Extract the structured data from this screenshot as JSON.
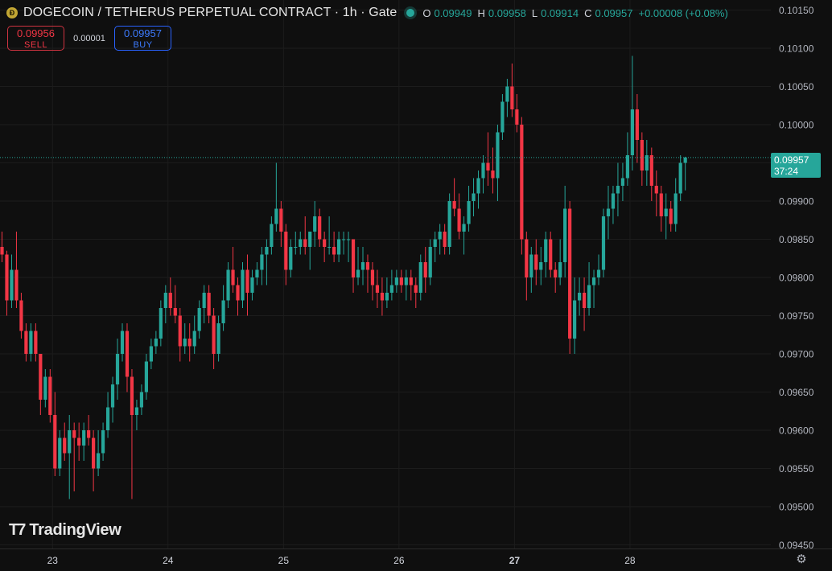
{
  "header": {
    "coin_icon": "dogecoin-coin-icon",
    "title": "DOGECOIN / TETHERUS PERPETUAL CONTRACT · 1h · Gate",
    "ohlc": {
      "o_label": "O",
      "o_value": "0.09949",
      "h_label": "H",
      "h_value": "0.09958",
      "l_label": "L",
      "l_value": "0.09914",
      "c_label": "C",
      "c_value": "0.09957",
      "change": "+0.00008 (+0.08%)"
    }
  },
  "trade": {
    "sell_price": "0.09956",
    "sell_label": "SELL",
    "spread": "0.00001",
    "buy_price": "0.09957",
    "buy_label": "BUY"
  },
  "last_price": {
    "price": "0.09957",
    "countdown": "37:24"
  },
  "branding": {
    "logo_text": "TradingView"
  },
  "colors": {
    "up": "#26a69a",
    "down": "#f23645",
    "background": "#0f0f0f",
    "grid": "#1c1c1c"
  },
  "chart_data": {
    "type": "candlestick",
    "title": "DOGECOIN / TETHERUS PERPETUAL CONTRACT · 1h · Gate",
    "ylim": [
      0.0945,
      0.1015
    ],
    "y_ticks": [
      "0.10150",
      "0.10100",
      "0.10050",
      "0.10000",
      "0.09950",
      "0.09900",
      "0.09850",
      "0.09800",
      "0.09750",
      "0.09700",
      "0.09650",
      "0.09600",
      "0.09550",
      "0.09500",
      "0.09450"
    ],
    "x_ticks": [
      {
        "label": "23",
        "index": 10.5,
        "bold": false
      },
      {
        "label": "24",
        "index": 34.5,
        "bold": false
      },
      {
        "label": "25",
        "index": 58.5,
        "bold": false
      },
      {
        "label": "26",
        "index": 82.5,
        "bold": false
      },
      {
        "label": "27",
        "index": 106.5,
        "bold": true
      },
      {
        "label": "28",
        "index": 130.5,
        "bold": false
      }
    ],
    "last_price": 0.09957,
    "candles": [
      [
        0.0984,
        0.0986,
        0.0982,
        0.0983
      ],
      [
        0.0983,
        0.09835,
        0.0975,
        0.0977
      ],
      [
        0.0977,
        0.0983,
        0.0976,
        0.0981
      ],
      [
        0.0981,
        0.0986,
        0.0976,
        0.0977
      ],
      [
        0.0977,
        0.0978,
        0.0972,
        0.0973
      ],
      [
        0.0973,
        0.0974,
        0.0969,
        0.097
      ],
      [
        0.097,
        0.0974,
        0.0969,
        0.0973
      ],
      [
        0.0973,
        0.0974,
        0.0969,
        0.097
      ],
      [
        0.097,
        0.097,
        0.0962,
        0.0964
      ],
      [
        0.0964,
        0.0968,
        0.0963,
        0.0967
      ],
      [
        0.0967,
        0.0968,
        0.0961,
        0.0962
      ],
      [
        0.0962,
        0.0965,
        0.0954,
        0.0955
      ],
      [
        0.0955,
        0.096,
        0.0954,
        0.0959
      ],
      [
        0.0959,
        0.0961,
        0.0956,
        0.0957
      ],
      [
        0.0957,
        0.0962,
        0.0951,
        0.096
      ],
      [
        0.096,
        0.0961,
        0.0952,
        0.0959
      ],
      [
        0.0959,
        0.0961,
        0.0956,
        0.0958
      ],
      [
        0.0958,
        0.0961,
        0.0956,
        0.096
      ],
      [
        0.096,
        0.0962,
        0.0958,
        0.0959
      ],
      [
        0.0959,
        0.096,
        0.0952,
        0.0955
      ],
      [
        0.0955,
        0.096,
        0.0954,
        0.0957
      ],
      [
        0.0957,
        0.0961,
        0.0956,
        0.096
      ],
      [
        0.096,
        0.0965,
        0.0959,
        0.0963
      ],
      [
        0.0963,
        0.0967,
        0.0961,
        0.0966
      ],
      [
        0.0966,
        0.0972,
        0.0964,
        0.097
      ],
      [
        0.097,
        0.0974,
        0.0969,
        0.0973
      ],
      [
        0.0973,
        0.0974,
        0.0965,
        0.0967
      ],
      [
        0.0967,
        0.0968,
        0.0951,
        0.0962
      ],
      [
        0.0962,
        0.0964,
        0.096,
        0.0963
      ],
      [
        0.0963,
        0.0966,
        0.0962,
        0.0965
      ],
      [
        0.0965,
        0.097,
        0.0964,
        0.0969
      ],
      [
        0.0969,
        0.0972,
        0.0968,
        0.0971
      ],
      [
        0.0971,
        0.0973,
        0.097,
        0.0972
      ],
      [
        0.0972,
        0.0977,
        0.0971,
        0.0976
      ],
      [
        0.0976,
        0.0979,
        0.0974,
        0.0978
      ],
      [
        0.0978,
        0.098,
        0.0975,
        0.0976
      ],
      [
        0.0976,
        0.0979,
        0.0974,
        0.0975
      ],
      [
        0.0975,
        0.0976,
        0.0969,
        0.0971
      ],
      [
        0.0971,
        0.0974,
        0.097,
        0.0972
      ],
      [
        0.0972,
        0.0974,
        0.0969,
        0.0971
      ],
      [
        0.0971,
        0.0975,
        0.097,
        0.0973
      ],
      [
        0.0973,
        0.0977,
        0.0972,
        0.0976
      ],
      [
        0.0976,
        0.0979,
        0.0974,
        0.0978
      ],
      [
        0.0978,
        0.0979,
        0.0974,
        0.0975
      ],
      [
        0.0975,
        0.0976,
        0.0968,
        0.097
      ],
      [
        0.097,
        0.0975,
        0.0969,
        0.0974
      ],
      [
        0.0974,
        0.0979,
        0.0973,
        0.0977
      ],
      [
        0.0977,
        0.0982,
        0.0976,
        0.0981
      ],
      [
        0.0981,
        0.0984,
        0.0978,
        0.0979
      ],
      [
        0.0979,
        0.098,
        0.0975,
        0.0977
      ],
      [
        0.0977,
        0.0982,
        0.0976,
        0.0981
      ],
      [
        0.0981,
        0.0983,
        0.0975,
        0.0978
      ],
      [
        0.0978,
        0.0981,
        0.0977,
        0.098
      ],
      [
        0.098,
        0.0982,
        0.0979,
        0.0981
      ],
      [
        0.0981,
        0.0984,
        0.0979,
        0.0983
      ],
      [
        0.0983,
        0.0985,
        0.0979,
        0.0984
      ],
      [
        0.0984,
        0.0988,
        0.0983,
        0.0987
      ],
      [
        0.0987,
        0.0995,
        0.0986,
        0.0989
      ],
      [
        0.0989,
        0.099,
        0.0984,
        0.0986
      ],
      [
        0.0986,
        0.0987,
        0.0979,
        0.0981
      ],
      [
        0.0981,
        0.0985,
        0.098,
        0.0984
      ],
      [
        0.0984,
        0.0986,
        0.0983,
        0.0984
      ],
      [
        0.0984,
        0.0986,
        0.0983,
        0.0985
      ],
      [
        0.0985,
        0.0988,
        0.0983,
        0.0984
      ],
      [
        0.0984,
        0.0986,
        0.0981,
        0.0986
      ],
      [
        0.0986,
        0.099,
        0.0984,
        0.0988
      ],
      [
        0.0988,
        0.0989,
        0.0984,
        0.0985
      ],
      [
        0.0985,
        0.0986,
        0.0982,
        0.0984
      ],
      [
        0.0984,
        0.0988,
        0.0983,
        0.0984
      ],
      [
        0.0984,
        0.0986,
        0.0982,
        0.0983
      ],
      [
        0.0983,
        0.0986,
        0.0982,
        0.0985
      ],
      [
        0.0985,
        0.0986,
        0.0983,
        0.0985
      ],
      [
        0.0985,
        0.0986,
        0.0982,
        0.0985
      ],
      [
        0.0985,
        0.0985,
        0.0978,
        0.098
      ],
      [
        0.098,
        0.0984,
        0.0979,
        0.0981
      ],
      [
        0.0981,
        0.0984,
        0.0979,
        0.0982
      ],
      [
        0.0982,
        0.0983,
        0.0978,
        0.0981
      ],
      [
        0.0981,
        0.0982,
        0.0977,
        0.0979
      ],
      [
        0.0979,
        0.0981,
        0.0976,
        0.0978
      ],
      [
        0.0978,
        0.098,
        0.0975,
        0.0977
      ],
      [
        0.0977,
        0.098,
        0.0976,
        0.0978
      ],
      [
        0.0978,
        0.0981,
        0.0977,
        0.0979
      ],
      [
        0.0979,
        0.0981,
        0.0978,
        0.098
      ],
      [
        0.098,
        0.0981,
        0.0978,
        0.0979
      ],
      [
        0.0979,
        0.0981,
        0.0977,
        0.098
      ],
      [
        0.098,
        0.0981,
        0.0977,
        0.0979
      ],
      [
        0.0979,
        0.098,
        0.0976,
        0.0978
      ],
      [
        0.0978,
        0.0983,
        0.0977,
        0.0982
      ],
      [
        0.0982,
        0.0984,
        0.0978,
        0.098
      ],
      [
        0.098,
        0.0985,
        0.0979,
        0.0984
      ],
      [
        0.0984,
        0.0986,
        0.0982,
        0.0985
      ],
      [
        0.0985,
        0.0987,
        0.0983,
        0.0986
      ],
      [
        0.0986,
        0.0987,
        0.0983,
        0.0984
      ],
      [
        0.0984,
        0.0991,
        0.0983,
        0.099
      ],
      [
        0.099,
        0.0993,
        0.0988,
        0.0989
      ],
      [
        0.0989,
        0.0991,
        0.0985,
        0.0986
      ],
      [
        0.0986,
        0.0988,
        0.0983,
        0.0987
      ],
      [
        0.0987,
        0.0992,
        0.0986,
        0.099
      ],
      [
        0.099,
        0.0993,
        0.0988,
        0.0991
      ],
      [
        0.0991,
        0.0994,
        0.0989,
        0.0993
      ],
      [
        0.0993,
        0.0996,
        0.0991,
        0.0995
      ],
      [
        0.0995,
        0.0999,
        0.0992,
        0.0994
      ],
      [
        0.0994,
        0.0997,
        0.0991,
        0.0993
      ],
      [
        0.0993,
        0.1,
        0.099,
        0.0999
      ],
      [
        0.0999,
        0.1004,
        0.0998,
        0.1003
      ],
      [
        0.1003,
        0.1006,
        0.1001,
        0.1005
      ],
      [
        0.1005,
        0.1008,
        0.1001,
        0.1002
      ],
      [
        0.1002,
        0.1004,
        0.0999,
        0.1
      ],
      [
        0.1,
        0.1001,
        0.0983,
        0.0985
      ],
      [
        0.0985,
        0.0986,
        0.0977,
        0.098
      ],
      [
        0.098,
        0.0984,
        0.0978,
        0.0983
      ],
      [
        0.0983,
        0.0985,
        0.0979,
        0.0981
      ],
      [
        0.0981,
        0.0984,
        0.0979,
        0.0982
      ],
      [
        0.0982,
        0.0986,
        0.098,
        0.0985
      ],
      [
        0.0985,
        0.0986,
        0.098,
        0.0981
      ],
      [
        0.0981,
        0.0982,
        0.0978,
        0.098
      ],
      [
        0.098,
        0.0985,
        0.0979,
        0.0982
      ],
      [
        0.0982,
        0.0992,
        0.098,
        0.0989
      ],
      [
        0.0989,
        0.099,
        0.097,
        0.0972
      ],
      [
        0.0972,
        0.098,
        0.097,
        0.0977
      ],
      [
        0.0977,
        0.098,
        0.0975,
        0.0978
      ],
      [
        0.0978,
        0.098,
        0.0973,
        0.0976
      ],
      [
        0.0976,
        0.0982,
        0.0975,
        0.0979
      ],
      [
        0.0979,
        0.0981,
        0.0976,
        0.098
      ],
      [
        0.098,
        0.0983,
        0.0979,
        0.0981
      ],
      [
        0.0981,
        0.0989,
        0.098,
        0.0988
      ],
      [
        0.0988,
        0.0992,
        0.0985,
        0.0989
      ],
      [
        0.0989,
        0.0992,
        0.0987,
        0.0991
      ],
      [
        0.0991,
        0.0995,
        0.0988,
        0.0992
      ],
      [
        0.0992,
        0.0995,
        0.099,
        0.0993
      ],
      [
        0.0993,
        0.0999,
        0.0992,
        0.0996
      ],
      [
        0.0996,
        0.1009,
        0.0994,
        0.1002
      ],
      [
        0.1002,
        0.1004,
        0.0995,
        0.0998
      ],
      [
        0.0998,
        0.0999,
        0.0992,
        0.0994
      ],
      [
        0.0994,
        0.0998,
        0.0992,
        0.0996
      ],
      [
        0.0996,
        0.0997,
        0.099,
        0.0992
      ],
      [
        0.0992,
        0.0994,
        0.0988,
        0.0991
      ],
      [
        0.0991,
        0.0992,
        0.0986,
        0.0988
      ],
      [
        0.0988,
        0.0991,
        0.0985,
        0.0989
      ],
      [
        0.0989,
        0.099,
        0.0986,
        0.0987
      ],
      [
        0.0987,
        0.0993,
        0.0986,
        0.0991
      ],
      [
        0.0991,
        0.0996,
        0.099,
        0.0995
      ],
      [
        0.0995,
        0.09958,
        0.09914,
        0.09957
      ]
    ]
  }
}
